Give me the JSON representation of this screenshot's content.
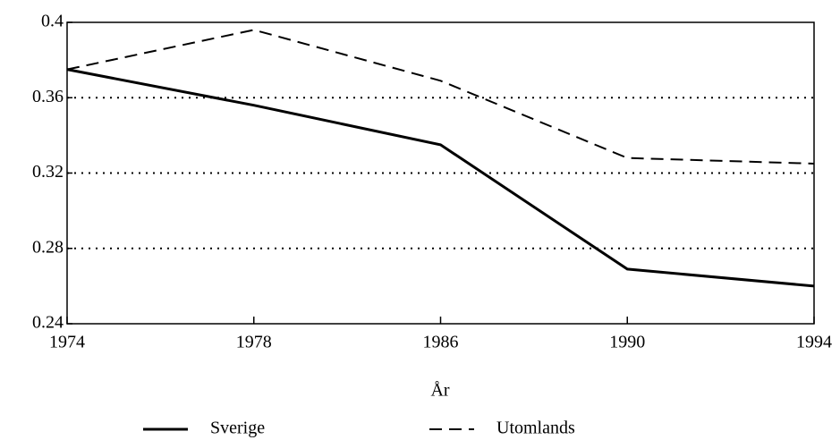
{
  "chart_data": {
    "type": "line",
    "x_label": "År",
    "categories": [
      "1974",
      "1978",
      "1986",
      "1990",
      "1994"
    ],
    "series": [
      {
        "name": "Sverige",
        "color": "#000000",
        "line_style": "solid",
        "values": [
          0.375,
          0.356,
          0.335,
          0.269,
          0.26
        ]
      },
      {
        "name": "Utomlands",
        "color": "#000000",
        "line_style": "dashed",
        "values": [
          0.375,
          0.396,
          0.369,
          0.328,
          0.325
        ]
      }
    ],
    "ylim": [
      0.24,
      0.4
    ],
    "yticks": [
      0.24,
      0.28,
      0.32,
      0.36,
      0.4
    ],
    "grid": true
  }
}
